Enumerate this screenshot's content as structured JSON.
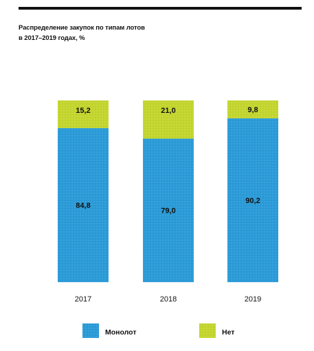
{
  "chart_data": {
    "type": "bar",
    "stacked": true,
    "title_lines": [
      "Распределение закупок по типам лотов",
      "в 2017–2019 годах, %"
    ],
    "categories": [
      "2017",
      "2018",
      "2019"
    ],
    "series": [
      {
        "name": "Монолот",
        "values": [
          84.8,
          79.0,
          90.2
        ],
        "labels": [
          "84,8",
          "79,0",
          "90,2"
        ],
        "color": "#2a9bd8"
      },
      {
        "name": "Нет",
        "values": [
          15.2,
          21.0,
          9.8
        ],
        "labels": [
          "15,2",
          "21,0",
          "9,8"
        ],
        "color": "#c4d62e"
      }
    ],
    "ylim": [
      0,
      100
    ],
    "grid": false,
    "legend": "bottom"
  }
}
